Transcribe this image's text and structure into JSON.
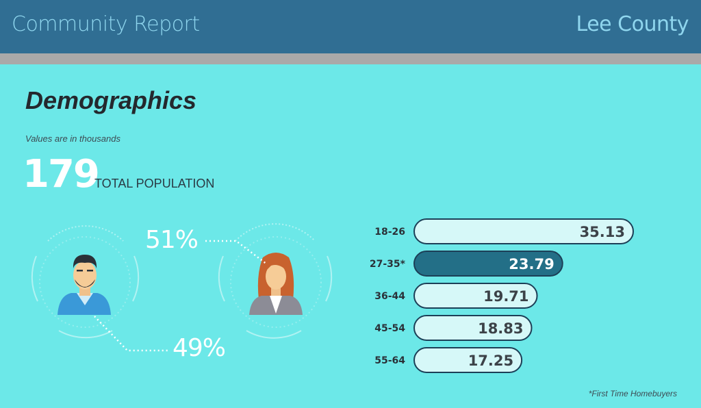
{
  "header": {
    "title": "Community Report",
    "county": "Lee County"
  },
  "section": {
    "title": "Demographics",
    "note": "Values are in thousands",
    "total_value": "179",
    "total_label": "TOTAL POPULATION"
  },
  "gender": {
    "female_pct": "51%",
    "male_pct": "49%"
  },
  "colors": {
    "background": "#6ce8e8",
    "header": "#306e93",
    "bar_fill": "#d6f8f8",
    "bar_highlight": "#236f87",
    "bar_stroke": "#1c3f57"
  },
  "chart_data": {
    "type": "bar",
    "orientation": "horizontal",
    "categories": [
      "18-26",
      "27-35*",
      "36-44",
      "45-54",
      "55-64"
    ],
    "values": [
      35.13,
      23.79,
      19.71,
      18.83,
      17.25
    ],
    "value_labels": [
      "35.13",
      "23.79",
      "19.71",
      "18.83",
      "17.25"
    ],
    "highlight_index": 1,
    "xlim": [
      0,
      35.13
    ],
    "footnote": "*First Time Homebuyers"
  }
}
